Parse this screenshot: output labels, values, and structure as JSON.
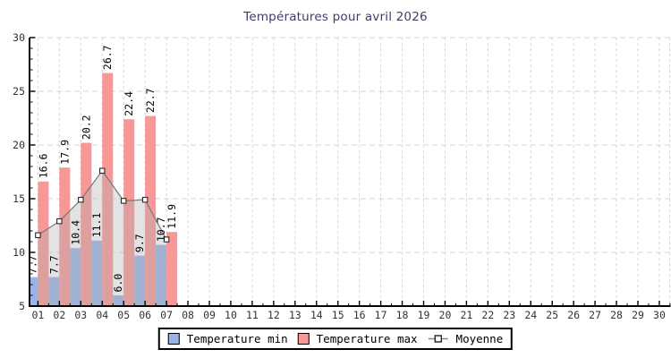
{
  "page": {
    "background": "#ffffff"
  },
  "chart_data": {
    "type": "bar",
    "title": "Températures pour avril 2026",
    "xlabel": "",
    "ylabel": "",
    "ylim": [
      5,
      30
    ],
    "y_ticks": [
      5,
      10,
      15,
      20,
      25,
      30
    ],
    "x_tick_labels": [
      "01",
      "02",
      "03",
      "04",
      "05",
      "06",
      "07",
      "08",
      "09",
      "10",
      "11",
      "12",
      "13",
      "14",
      "15",
      "16",
      "17",
      "18",
      "19",
      "20",
      "21",
      "22",
      "23",
      "24",
      "25",
      "26",
      "27",
      "28",
      "29",
      "30"
    ],
    "grid": true,
    "legend_position": "bottom-center",
    "categories_with_data": [
      "01",
      "02",
      "03",
      "04",
      "05",
      "06",
      "07"
    ],
    "series": [
      {
        "name": "Temperature min",
        "type": "bar",
        "color": "#9ab3e8",
        "values": [
          7.7,
          7.7,
          10.4,
          11.1,
          6.0,
          9.7,
          10.7
        ],
        "value_labels": [
          "7.7",
          "7.7",
          "10.4",
          "11.1",
          "6.0",
          "9.7",
          "10.7"
        ]
      },
      {
        "name": "Temperature max",
        "type": "bar",
        "color": "#f99797",
        "values": [
          16.6,
          17.9,
          20.2,
          26.7,
          22.4,
          22.7,
          11.9
        ],
        "value_labels": [
          "16.6",
          "17.9",
          "20.2",
          "26.7",
          "22.4",
          "22.7",
          "11.9"
        ]
      },
      {
        "name": "Moyenne",
        "type": "line",
        "marker": "open-square",
        "color": "#777777",
        "area_fill": "rgba(175,175,175,0.35)",
        "values": [
          11.6,
          12.9,
          14.9,
          17.6,
          14.8,
          14.9,
          11.2
        ]
      }
    ],
    "colors": {
      "grid": "#d6d6d6",
      "axis": "#000000",
      "tick_label": "#333333",
      "value_label": "#000000",
      "title": "#3d3d68",
      "marker_fill": "#ffffff",
      "marker_stroke": "#2a2a2a"
    }
  }
}
